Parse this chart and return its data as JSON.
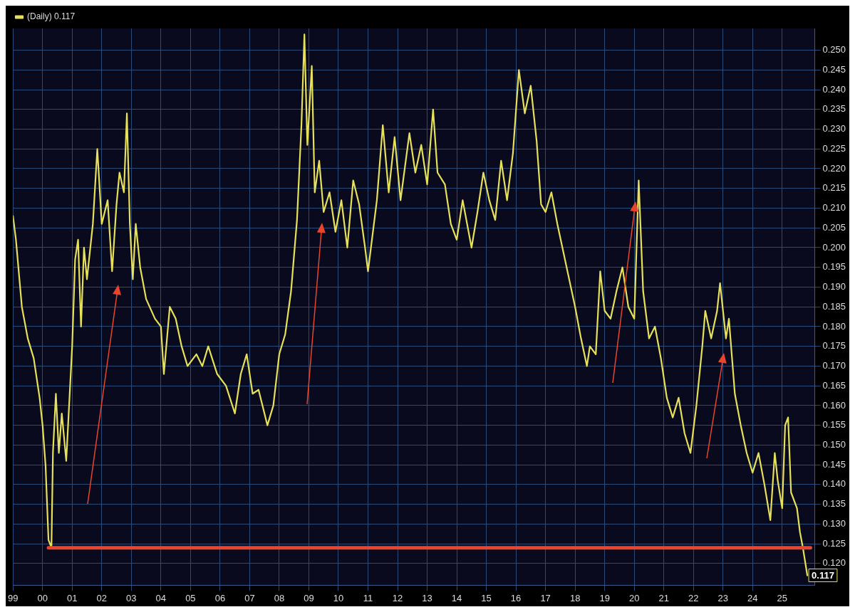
{
  "chart_data": {
    "type": "line",
    "x": [
      1999.0,
      1999.1,
      1999.3,
      1999.5,
      1999.7,
      1999.9,
      2000.0,
      2000.1,
      2000.2,
      2000.3,
      2000.35,
      2000.45,
      2000.55,
      2000.65,
      2000.8,
      2001.0,
      2001.1,
      2001.2,
      2001.3,
      2001.4,
      2001.5,
      2001.7,
      2001.85,
      2002.0,
      2002.2,
      2002.35,
      2002.5,
      2002.6,
      2002.75,
      2002.85,
      2002.95,
      2003.05,
      2003.15,
      2003.3,
      2003.5,
      2003.8,
      2004.0,
      2004.1,
      2004.3,
      2004.5,
      2004.7,
      2004.9,
      2005.2,
      2005.4,
      2005.6,
      2005.9,
      2006.2,
      2006.5,
      2006.7,
      2006.9,
      2007.1,
      2007.3,
      2007.5,
      2007.6,
      2007.8,
      2008.0,
      2008.2,
      2008.4,
      2008.6,
      2008.75,
      2008.85,
      2008.95,
      2009.1,
      2009.2,
      2009.35,
      2009.5,
      2009.7,
      2009.9,
      2010.1,
      2010.3,
      2010.5,
      2010.7,
      2010.9,
      2011.0,
      2011.3,
      2011.5,
      2011.7,
      2011.9,
      2012.1,
      2012.4,
      2012.6,
      2012.8,
      2013.0,
      2013.2,
      2013.35,
      2013.6,
      2013.8,
      2014.0,
      2014.2,
      2014.5,
      2014.7,
      2014.9,
      2015.1,
      2015.3,
      2015.5,
      2015.7,
      2015.9,
      2016.1,
      2016.3,
      2016.5,
      2016.7,
      2016.85,
      2017.0,
      2017.2,
      2017.4,
      2017.6,
      2017.8,
      2018.0,
      2018.2,
      2018.4,
      2018.5,
      2018.7,
      2018.85,
      2019.0,
      2019.2,
      2019.4,
      2019.6,
      2019.8,
      2020.0,
      2020.15,
      2020.3,
      2020.5,
      2020.7,
      2020.9,
      2021.1,
      2021.3,
      2021.5,
      2021.7,
      2021.9,
      2022.1,
      2022.3,
      2022.4,
      2022.6,
      2022.8,
      2022.9,
      2023.1,
      2023.2,
      2023.4,
      2023.6,
      2023.8,
      2024.0,
      2024.2,
      2024.4,
      2024.6,
      2024.75,
      2024.85,
      2025.0,
      2025.1,
      2025.2,
      2025.3,
      2025.5,
      2025.6,
      2025.7,
      2025.85
    ],
    "series": [
      {
        "name": "(Daily) 0.117",
        "color": "#e6e05a",
        "values": [
          0.208,
          0.202,
          0.185,
          0.177,
          0.172,
          0.162,
          0.155,
          0.145,
          0.126,
          0.124,
          0.148,
          0.163,
          0.148,
          0.158,
          0.146,
          0.175,
          0.197,
          0.202,
          0.18,
          0.2,
          0.192,
          0.206,
          0.225,
          0.206,
          0.212,
          0.194,
          0.211,
          0.219,
          0.214,
          0.234,
          0.206,
          0.192,
          0.206,
          0.195,
          0.187,
          0.182,
          0.18,
          0.168,
          0.185,
          0.182,
          0.175,
          0.17,
          0.173,
          0.17,
          0.175,
          0.168,
          0.165,
          0.158,
          0.168,
          0.173,
          0.163,
          0.164,
          0.158,
          0.155,
          0.16,
          0.173,
          0.178,
          0.189,
          0.207,
          0.231,
          0.254,
          0.226,
          0.246,
          0.214,
          0.222,
          0.209,
          0.214,
          0.204,
          0.212,
          0.2,
          0.217,
          0.211,
          0.2,
          0.194,
          0.212,
          0.231,
          0.214,
          0.228,
          0.212,
          0.229,
          0.219,
          0.226,
          0.216,
          0.235,
          0.219,
          0.216,
          0.206,
          0.202,
          0.212,
          0.2,
          0.209,
          0.219,
          0.212,
          0.207,
          0.222,
          0.212,
          0.224,
          0.245,
          0.234,
          0.241,
          0.227,
          0.211,
          0.209,
          0.214,
          0.206,
          0.199,
          0.192,
          0.185,
          0.177,
          0.17,
          0.175,
          0.173,
          0.194,
          0.184,
          0.182,
          0.189,
          0.195,
          0.185,
          0.182,
          0.217,
          0.189,
          0.177,
          0.18,
          0.172,
          0.162,
          0.157,
          0.162,
          0.153,
          0.148,
          0.16,
          0.175,
          0.184,
          0.177,
          0.184,
          0.191,
          0.177,
          0.182,
          0.163,
          0.155,
          0.148,
          0.143,
          0.148,
          0.14,
          0.131,
          0.148,
          0.141,
          0.134,
          0.155,
          0.157,
          0.138,
          0.134,
          0.128,
          0.124,
          0.117
        ]
      }
    ],
    "xlim": [
      1999.0,
      2026.1
    ],
    "xticks": [
      {
        "value": 1999,
        "label": "99"
      },
      {
        "value": 2000,
        "label": "00"
      },
      {
        "value": 2001,
        "label": "01"
      },
      {
        "value": 2002,
        "label": "02"
      },
      {
        "value": 2003,
        "label": "03"
      },
      {
        "value": 2004,
        "label": "04"
      },
      {
        "value": 2005,
        "label": "05"
      },
      {
        "value": 2006,
        "label": "06"
      },
      {
        "value": 2007,
        "label": "07"
      },
      {
        "value": 2008,
        "label": "08"
      },
      {
        "value": 2009,
        "label": "09"
      },
      {
        "value": 2010,
        "label": "10"
      },
      {
        "value": 2011,
        "label": "11"
      },
      {
        "value": 2012,
        "label": "12"
      },
      {
        "value": 2013,
        "label": "13"
      },
      {
        "value": 2014,
        "label": "14"
      },
      {
        "value": 2015,
        "label": "15"
      },
      {
        "value": 2016,
        "label": "16"
      },
      {
        "value": 2017,
        "label": "17"
      },
      {
        "value": 2018,
        "label": "18"
      },
      {
        "value": 2019,
        "label": "19"
      },
      {
        "value": 2020,
        "label": "20"
      },
      {
        "value": 2021,
        "label": "21"
      },
      {
        "value": 2022,
        "label": "22"
      },
      {
        "value": 2023,
        "label": "23"
      },
      {
        "value": 2024,
        "label": "24"
      },
      {
        "value": 2025,
        "label": "25"
      }
    ],
    "ylim": [
      0.1145,
      0.2555
    ],
    "yticks": [
      {
        "value": 0.12,
        "label": "0.120"
      },
      {
        "value": 0.125,
        "label": "0.125"
      },
      {
        "value": 0.13,
        "label": "0.130"
      },
      {
        "value": 0.135,
        "label": "0.135"
      },
      {
        "value": 0.14,
        "label": "0.140"
      },
      {
        "value": 0.145,
        "label": "0.145"
      },
      {
        "value": 0.15,
        "label": "0.150"
      },
      {
        "value": 0.155,
        "label": "0.155"
      },
      {
        "value": 0.16,
        "label": "0.160"
      },
      {
        "value": 0.165,
        "label": "0.165"
      },
      {
        "value": 0.17,
        "label": "0.170"
      },
      {
        "value": 0.175,
        "label": "0.175"
      },
      {
        "value": 0.18,
        "label": "0.180"
      },
      {
        "value": 0.185,
        "label": "0.185"
      },
      {
        "value": 0.19,
        "label": "0.190"
      },
      {
        "value": 0.195,
        "label": "0.195"
      },
      {
        "value": 0.2,
        "label": "0.200"
      },
      {
        "value": 0.205,
        "label": "0.205"
      },
      {
        "value": 0.21,
        "label": "0.210"
      },
      {
        "value": 0.215,
        "label": "0.215"
      },
      {
        "value": 0.22,
        "label": "0.220"
      },
      {
        "value": 0.225,
        "label": "0.225"
      },
      {
        "value": 0.23,
        "label": "0.230"
      },
      {
        "value": 0.235,
        "label": "0.235"
      },
      {
        "value": 0.24,
        "label": "0.240"
      },
      {
        "value": 0.245,
        "label": "0.245"
      },
      {
        "value": 0.25,
        "label": "0.250"
      }
    ],
    "ref_lines": [
      {
        "axis": "y",
        "value": 0.124,
        "color": "#e8452c"
      }
    ],
    "annotations": [
      {
        "text": "0.117",
        "x": 2025.85,
        "y": 0.117
      }
    ],
    "grid": true,
    "legend": "top left",
    "marker": "none",
    "line_style": "solid"
  }
}
